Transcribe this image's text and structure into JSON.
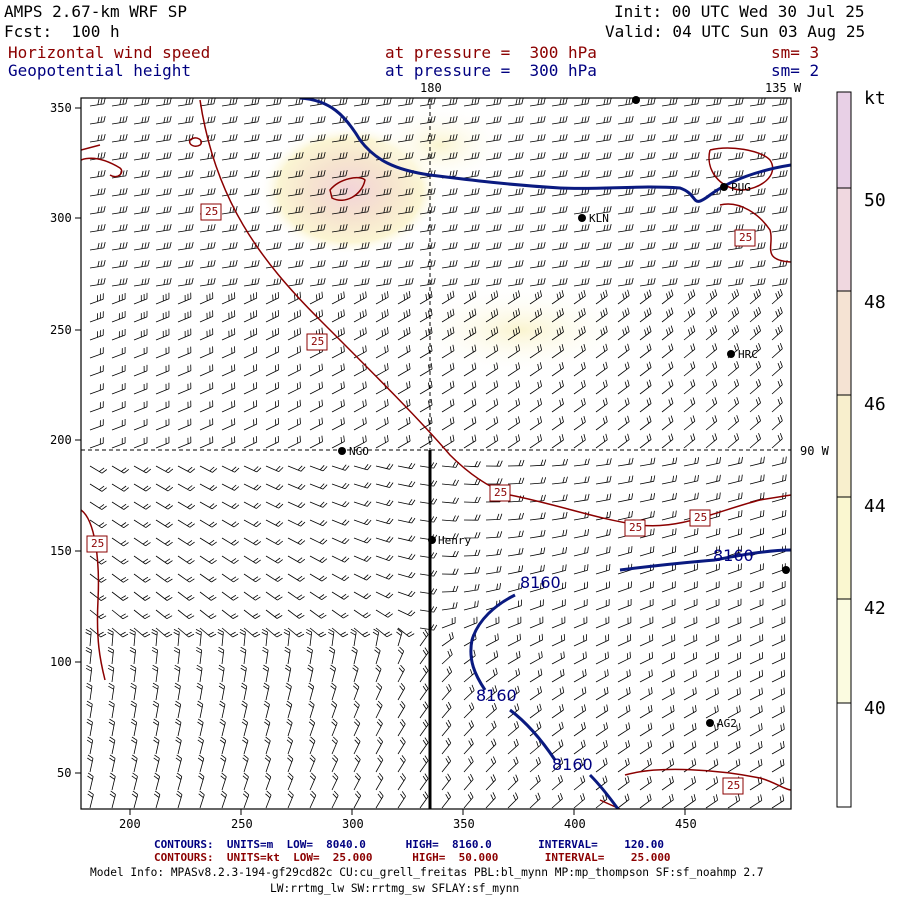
{
  "header": {
    "title": "AMPS 2.67-km WRF SP",
    "fcst": "Fcst:  100 h",
    "init": "Init: 00 UTC Wed 30 Jul 25",
    "valid": "Valid: 04 UTC Sun 03 Aug 25",
    "field1": "Horizontal wind speed",
    "field1_level": "at pressure =  300 hPa",
    "field1_sm": "sm= 3",
    "field2": "Geopotential height",
    "field2_level": "at pressure =  300 hPa",
    "field2_sm": "sm= 2"
  },
  "map": {
    "top_labels": [
      "180",
      "135 W"
    ],
    "right_labels": [
      "90 W"
    ],
    "x_ticks": [
      "200",
      "250",
      "300",
      "350",
      "400",
      "450"
    ],
    "y_ticks": [
      "350",
      "300",
      "250",
      "200",
      "150",
      "100",
      "50"
    ],
    "stations": [
      {
        "name": "NGO"
      },
      {
        "name": "Henry"
      },
      {
        "name": "KLN"
      },
      {
        "name": "PUG"
      },
      {
        "name": "HRC"
      },
      {
        "name": "AG2"
      }
    ],
    "height_contour_labels": [
      "8160",
      "8160",
      "8160",
      "8160"
    ],
    "speed_contour_labels": [
      "25",
      "25",
      "25",
      "25",
      "25",
      "25",
      "25",
      "25"
    ]
  },
  "colorbar": {
    "unit": "kt",
    "labels": [
      "50",
      "48",
      "46",
      "44",
      "42",
      "40"
    ],
    "colors": [
      "#e8d0e6",
      "#f0d8e0",
      "#f5e3d3",
      "#f8efcd",
      "#faf7d0",
      "#fbfbe0",
      "#ffffff"
    ]
  },
  "footer": {
    "blue_line": "CONTOURS:  UNITS=m  LOW=  8040.0      HIGH=  8160.0       INTERVAL=    120.00",
    "red_line": "CONTOURS:  UNITS=kt  LOW=  25.000      HIGH=  50.000       INTERVAL=    25.000",
    "model_info": "Model Info: MPASv8.2.3-194-gf29cd82c CU:cu_grell_freitas PBL:bl_mynn MP:mp_thompson SF:sf_noahmp 2.7",
    "model_info2": "LW:rrtmg_lw SW:rrtmg_sw SFLAY:sf_mynn"
  }
}
